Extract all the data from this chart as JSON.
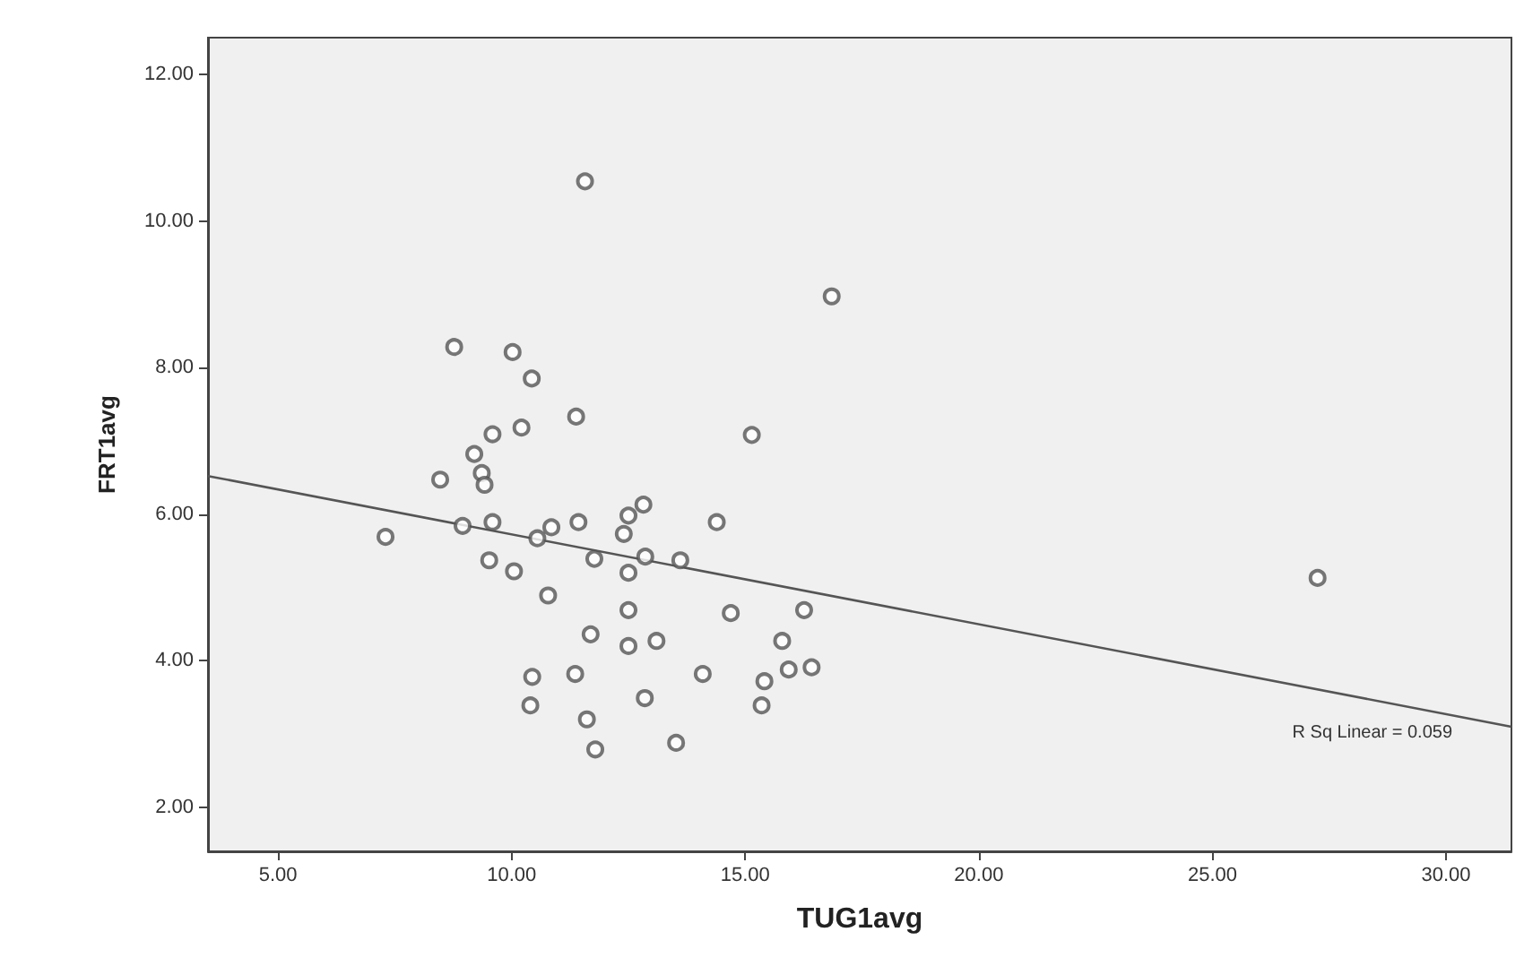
{
  "chart_data": {
    "type": "scatter",
    "xlabel": "TUG1avg",
    "ylabel": "FRT1avg",
    "xlim": [
      3.5,
      31.4
    ],
    "ylim": [
      1.4,
      12.5
    ],
    "xticks": [
      {
        "value": 5,
        "label": "5.00"
      },
      {
        "value": 10,
        "label": "10.00"
      },
      {
        "value": 15,
        "label": "15.00"
      },
      {
        "value": 20,
        "label": "20.00"
      },
      {
        "value": 25,
        "label": "25.00"
      },
      {
        "value": 30,
        "label": "30.00"
      }
    ],
    "yticks": [
      {
        "value": 2,
        "label": "2.00"
      },
      {
        "value": 4,
        "label": "4.00"
      },
      {
        "value": 6,
        "label": "6.00"
      },
      {
        "value": 8,
        "label": "8.00"
      },
      {
        "value": 10,
        "label": "10.00"
      },
      {
        "value": 12,
        "label": "12.00"
      }
    ],
    "grid": false,
    "marker": "circle",
    "annotations": [
      "R Sq Linear = 0.059"
    ],
    "series": [
      {
        "color": "#555555",
        "x": [
          8.77,
          10.02,
          10.43,
          11.38,
          9.59,
          10.21,
          9.2,
          9.36,
          9.42,
          8.47,
          7.3,
          8.95,
          9.59,
          10.55,
          10.85,
          11.43,
          12.5,
          12.4,
          9.52,
          10.05,
          11.77,
          10.78,
          12.5,
          12.5,
          11.69,
          12.5,
          10.44,
          11.36,
          10.4,
          11.61,
          11.79,
          15.14,
          12.82,
          14.39,
          12.86,
          13.61,
          14.69,
          16.26,
          13.1,
          15.79,
          14.09,
          15.93,
          16.42,
          15.41,
          12.85,
          15.35,
          13.52,
          11.57,
          16.85,
          27.25
        ],
        "values": [
          8.28,
          8.21,
          7.85,
          7.33,
          7.09,
          7.18,
          6.82,
          6.56,
          6.4,
          6.47,
          5.69,
          5.84,
          5.89,
          5.67,
          5.82,
          5.89,
          5.98,
          5.73,
          5.37,
          5.22,
          5.39,
          4.89,
          5.2,
          4.69,
          4.36,
          4.2,
          3.78,
          3.82,
          3.39,
          3.2,
          2.79,
          7.08,
          6.13,
          5.89,
          5.42,
          5.37,
          4.65,
          4.69,
          4.27,
          4.27,
          3.82,
          3.88,
          3.91,
          3.72,
          3.49,
          3.39,
          2.88,
          10.54,
          8.97,
          5.13
        ]
      },
      {
        "type": "line",
        "color": "#555555",
        "marker": "none",
        "x": [
          3.5,
          31.4
        ],
        "values": [
          6.52,
          3.1
        ]
      }
    ]
  }
}
